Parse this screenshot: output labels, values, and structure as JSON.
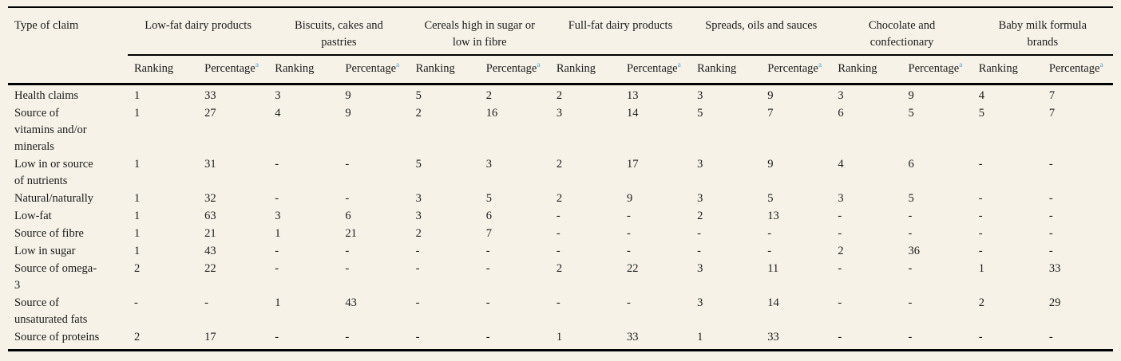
{
  "table": {
    "corner_label": "Type of claim",
    "groups": [
      {
        "label": "Low-fat dairy products"
      },
      {
        "label": "Biscuits, cakes and pastries"
      },
      {
        "label": "Cereals high in sugar or low in fibre"
      },
      {
        "label": "Full-fat dairy products"
      },
      {
        "label": "Spreads, oils and sauces"
      },
      {
        "label": "Chocolate and confectionary"
      },
      {
        "label": "Baby milk formula brands"
      }
    ],
    "sub_header": {
      "ranking": "Ranking",
      "percentage": "Percentage",
      "footnote_marker": "a"
    },
    "rows": [
      {
        "claim": "Health claims",
        "values": [
          "1",
          "33",
          "3",
          "9",
          "5",
          "2",
          "2",
          "13",
          "3",
          "9",
          "3",
          "9",
          "4",
          "7"
        ]
      },
      {
        "claim": "Source of vitamins and/or minerals",
        "values": [
          "1",
          "27",
          "4",
          "9",
          "2",
          "16",
          "3",
          "14",
          "5",
          "7",
          "6",
          "5",
          "5",
          "7"
        ]
      },
      {
        "claim": "Low in or source of nutrients",
        "values": [
          "1",
          "31",
          "-",
          "-",
          "5",
          "3",
          "2",
          "17",
          "3",
          "9",
          "4",
          "6",
          "-",
          "-"
        ]
      },
      {
        "claim": "Natural/naturally",
        "values": [
          "1",
          "32",
          "-",
          "-",
          "3",
          "5",
          "2",
          "9",
          "3",
          "5",
          "3",
          "5",
          "-",
          "-"
        ]
      },
      {
        "claim": "Low-fat",
        "values": [
          "1",
          "63",
          "3",
          "6",
          "3",
          "6",
          "-",
          "-",
          "2",
          "13",
          "-",
          "-",
          "-",
          "-"
        ]
      },
      {
        "claim": "Source of fibre",
        "values": [
          "1",
          "21",
          "1",
          "21",
          "2",
          "7",
          "-",
          "-",
          "-",
          "-",
          "-",
          "-",
          "-",
          "-"
        ]
      },
      {
        "claim": "Low in sugar",
        "values": [
          "1",
          "43",
          "-",
          "-",
          "-",
          "-",
          "-",
          "-",
          "-",
          "-",
          "2",
          "36",
          "-",
          "-"
        ]
      },
      {
        "claim": "Source of omega-3",
        "values": [
          "2",
          "22",
          "-",
          "-",
          "-",
          "-",
          "2",
          "22",
          "3",
          "11",
          "-",
          "-",
          "1",
          "33"
        ]
      },
      {
        "claim": "Source of unsaturated fats",
        "values": [
          "-",
          "-",
          "1",
          "43",
          "-",
          "-",
          "-",
          "-",
          "3",
          "14",
          "-",
          "-",
          "2",
          "29"
        ]
      },
      {
        "claim": "Source of proteins",
        "values": [
          "2",
          "17",
          "-",
          "-",
          "-",
          "-",
          "1",
          "33",
          "1",
          "33",
          "-",
          "-",
          "-",
          "-"
        ]
      }
    ],
    "colors": {
      "background": "#f6f2e8",
      "text": "#1b1b1b",
      "rule": "#000000",
      "footnote_marker": "#4aa3d6"
    }
  }
}
